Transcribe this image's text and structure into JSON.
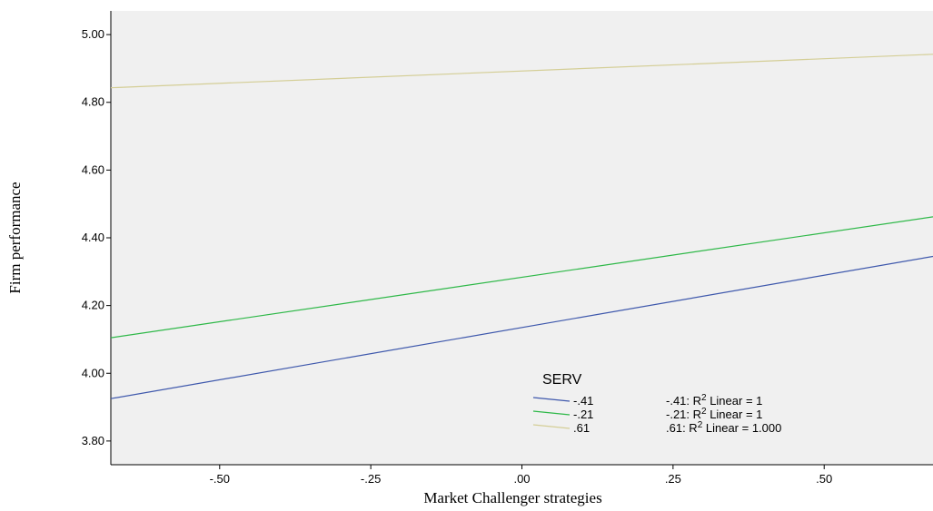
{
  "chart_data": {
    "type": "line",
    "xlabel": "Market Challenger strategies",
    "ylabel": "Firm performance",
    "xlim": [
      -0.68,
      0.68
    ],
    "ylim": [
      3.73,
      5.07
    ],
    "x_ticks": [
      {
        "value": -0.5,
        "label": "-.50"
      },
      {
        "value": -0.25,
        "label": "-.25"
      },
      {
        "value": 0.0,
        "label": ".00"
      },
      {
        "value": 0.25,
        "label": ".25"
      },
      {
        "value": 0.5,
        "label": ".50"
      }
    ],
    "y_ticks": [
      {
        "value": 3.8,
        "label": "3.80"
      },
      {
        "value": 4.0,
        "label": "4.00"
      },
      {
        "value": 4.2,
        "label": "4.20"
      },
      {
        "value": 4.4,
        "label": "4.40"
      },
      {
        "value": 4.6,
        "label": "4.60"
      },
      {
        "value": 4.8,
        "label": "4.80"
      },
      {
        "value": 5.0,
        "label": "5.00"
      }
    ],
    "background_color": "#f0f0f0",
    "grid": false,
    "legend": {
      "title": "SERV",
      "placement": "bottom-right",
      "fit_prefix": "R",
      "fit_sup": "2"
    },
    "series": [
      {
        "name": "-.41",
        "color": "#3e58ac",
        "x": [
          -0.68,
          0.68
        ],
        "y": [
          3.925,
          4.345
        ],
        "fit_label": "-.41:",
        "fit_value": "Linear = 1"
      },
      {
        "name": "-.21",
        "color": "#2eb848",
        "x": [
          -0.68,
          0.68
        ],
        "y": [
          4.105,
          4.462
        ],
        "fit_label": "-.21:",
        "fit_value": "Linear = 1"
      },
      {
        "name": ".61",
        "color": "#d4ce96",
        "x": [
          -0.68,
          0.68
        ],
        "y": [
          4.843,
          4.942
        ],
        "fit_label": ".61:",
        "fit_value": "Linear = 1.000"
      }
    ]
  }
}
